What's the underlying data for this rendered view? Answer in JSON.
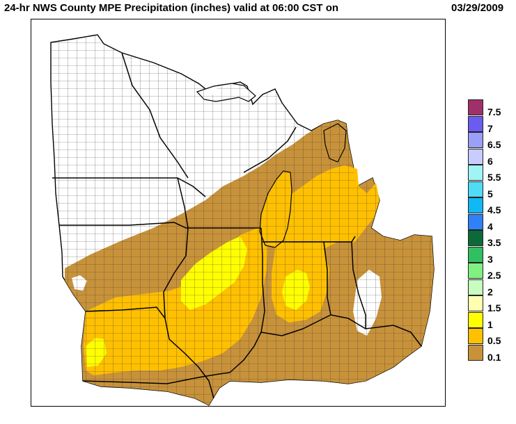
{
  "title": {
    "main": "24-hr NWS County MPE Precipitation (inches) valid at 06:00 CST on",
    "date": "03/29/2009"
  },
  "colors": {
    "range_0_1": "#c8923a",
    "range_0_5": "#ffc000",
    "range_1": "#ffff00",
    "county_line": "#2b2b2b",
    "state_line": "#000000"
  },
  "legend": {
    "items": [
      {
        "label": "7.5",
        "color": "#a0306a"
      },
      {
        "label": "7",
        "color": "#6a5cf0"
      },
      {
        "label": "6.5",
        "color": "#9aa0f8"
      },
      {
        "label": "6",
        "color": "#c8ccff"
      },
      {
        "label": "5.5",
        "color": "#a0f4f4"
      },
      {
        "label": "5",
        "color": "#50dcf4"
      },
      {
        "label": "4.5",
        "color": "#10b8f4"
      },
      {
        "label": "4",
        "color": "#3080f8"
      },
      {
        "label": "3.5",
        "color": "#0c6a3a"
      },
      {
        "label": "3",
        "color": "#30c060"
      },
      {
        "label": "2.5",
        "color": "#80f080"
      },
      {
        "label": "2",
        "color": "#c8fcc0"
      },
      {
        "label": "1.5",
        "color": "#ffffb0"
      },
      {
        "label": "1",
        "color": "#ffff00"
      },
      {
        "label": "0.5",
        "color": "#ffc000"
      },
      {
        "label": "0.1",
        "color": "#c8923a"
      }
    ]
  }
}
